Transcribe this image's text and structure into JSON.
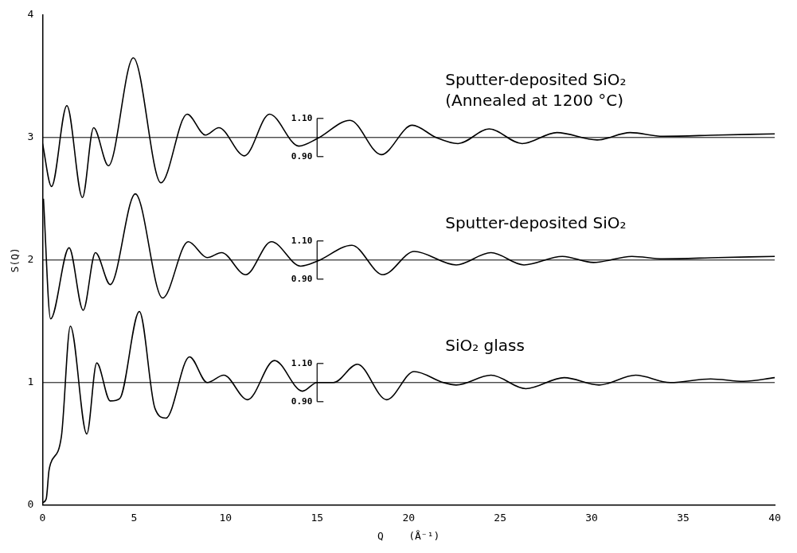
{
  "chart_data": {
    "type": "line",
    "xlabel": "Q    (Å⁻¹)",
    "ylabel": "S(Q)",
    "xlim": [
      0,
      40
    ],
    "xticks": [
      0,
      5,
      10,
      15,
      20,
      25,
      30,
      35,
      40
    ],
    "ylim": [
      0,
      4
    ],
    "yticks": [
      0,
      1,
      2,
      3,
      4
    ],
    "grid": false,
    "legend": false,
    "marker": "none",
    "line_style": "solid",
    "series": [
      {
        "name": "Sputter-deposited SiO₂ (Annealed at 1200 °C)",
        "color": "#000000",
        "x": [
          0,
          0.49,
          1.33,
          2.18,
          2.79,
          3.6,
          4.96,
          6.47,
          7.9,
          8.9,
          9.63,
          11.03,
          12.4,
          14.0,
          15.0,
          16.8,
          18.5,
          20.2,
          21.5,
          22.7,
          24.4,
          26.2,
          28.1,
          30.3,
          32.1,
          33.9,
          36.9,
          40
        ],
        "values": [
          2.95,
          2.6,
          3.26,
          2.51,
          3.08,
          2.77,
          3.65,
          2.63,
          3.19,
          3.02,
          3.08,
          2.85,
          3.19,
          2.93,
          2.99,
          3.14,
          2.86,
          3.1,
          3.0,
          2.95,
          3.07,
          2.95,
          3.04,
          2.98,
          3.04,
          3.01,
          3.02,
          3.03
        ]
      },
      {
        "name": "Sputter-deposited SiO₂",
        "color": "#000000",
        "x": [
          0.05,
          0.44,
          1.45,
          2.22,
          2.89,
          3.7,
          5.07,
          6.56,
          7.96,
          9.0,
          9.78,
          11.1,
          12.5,
          14.1,
          15.0,
          16.9,
          18.6,
          20.3,
          22.6,
          24.5,
          26.3,
          28.4,
          30.1,
          32.2,
          33.9,
          36.9,
          40
        ],
        "values": [
          2.5,
          1.52,
          2.1,
          1.59,
          2.06,
          1.8,
          2.54,
          1.69,
          2.15,
          2.02,
          2.06,
          1.88,
          2.15,
          1.95,
          1.99,
          2.12,
          1.88,
          2.07,
          1.96,
          2.06,
          1.96,
          2.03,
          1.98,
          2.03,
          2.01,
          2.02,
          2.03
        ]
      },
      {
        "name": "SiO₂ glass",
        "color": "#000000",
        "x": [
          0,
          0.2,
          0.35,
          0.44,
          1.03,
          1.52,
          2.42,
          2.96,
          3.7,
          4.22,
          5.29,
          6.14,
          6.74,
          8.03,
          9.0,
          9.9,
          11.2,
          12.67,
          14.2,
          15.0,
          15.9,
          17.2,
          18.8,
          20.3,
          21.9,
          22.6,
          24.5,
          26.4,
          28.5,
          30.4,
          32.4,
          34.3,
          36.5,
          38.3,
          40
        ],
        "values": [
          0.02,
          0.05,
          0.28,
          0.34,
          0.56,
          1.46,
          0.58,
          1.16,
          0.85,
          0.87,
          1.58,
          0.79,
          0.71,
          1.21,
          1.0,
          1.06,
          0.86,
          1.18,
          0.93,
          1.0,
          1.0,
          1.15,
          0.86,
          1.09,
          1.0,
          0.98,
          1.06,
          0.95,
          1.04,
          0.98,
          1.06,
          1.0,
          1.03,
          1.01,
          1.04
        ]
      }
    ],
    "ref_lines": [
      {
        "axis": "y",
        "value": 3
      },
      {
        "axis": "y",
        "value": 2
      },
      {
        "axis": "y",
        "value": 1
      }
    ],
    "annotations": [
      "1.10",
      "0.90",
      "1.10",
      "0.90",
      "1.10",
      "0.90"
    ]
  }
}
